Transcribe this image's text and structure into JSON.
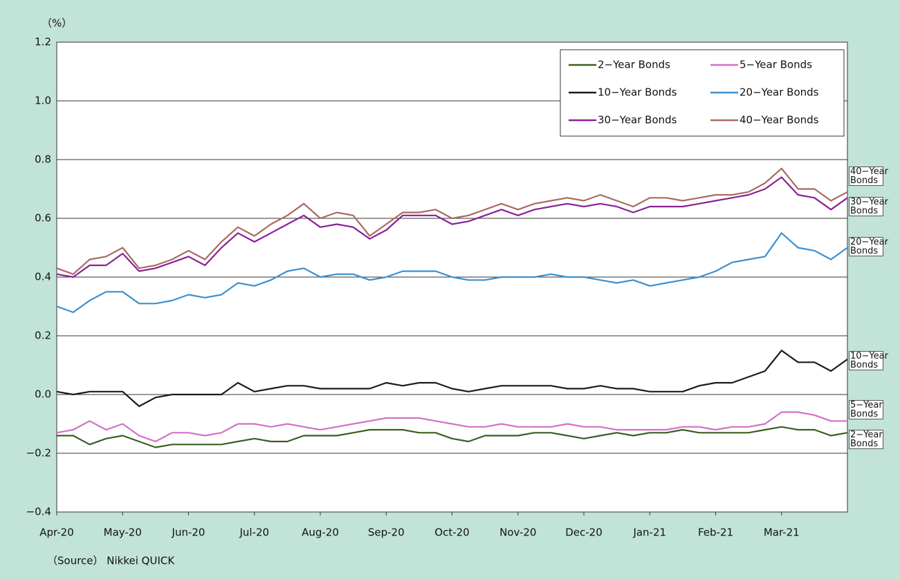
{
  "chart_data": {
    "type": "line",
    "y_unit": "（%）",
    "source": "（Source） Nikkei QUICK",
    "categories": [
      "Apr-20",
      null,
      null,
      null,
      "May-20",
      null,
      null,
      null,
      "Jun-20",
      null,
      null,
      null,
      "Jul-20",
      null,
      null,
      null,
      "Aug-20",
      null,
      null,
      null,
      "Sep-20",
      null,
      null,
      null,
      "Oct-20",
      null,
      null,
      null,
      "Nov-20",
      null,
      null,
      null,
      "Dec-20",
      null,
      null,
      null,
      "Jan-21",
      null,
      null,
      null,
      "Feb-21",
      null,
      null,
      null,
      "Mar-21",
      null,
      null,
      null,
      null
    ],
    "ylim": [
      -0.4,
      1.2
    ],
    "yticks": [
      {
        "value": -0.4,
        "label": "−0.4"
      },
      {
        "value": -0.2,
        "label": "−0.2"
      },
      {
        "value": 0,
        "label": "0.0"
      },
      0.2,
      0.4,
      0.6,
      0.8,
      {
        "value": 1,
        "label": "1.0"
      },
      1.2
    ],
    "grid": true,
    "legend": "upper right",
    "series": [
      {
        "name": "2−Year Bonds",
        "color": "#3b5e1f",
        "values": [
          -0.14,
          -0.14,
          -0.17,
          -0.15,
          -0.14,
          -0.16,
          -0.18,
          -0.17,
          -0.17,
          -0.17,
          -0.17,
          -0.16,
          -0.15,
          -0.16,
          -0.16,
          -0.14,
          -0.14,
          -0.14,
          -0.13,
          -0.12,
          -0.12,
          -0.12,
          -0.13,
          -0.13,
          -0.15,
          -0.16,
          -0.14,
          -0.14,
          -0.14,
          -0.13,
          -0.13,
          -0.14,
          -0.15,
          -0.14,
          -0.13,
          -0.14,
          -0.13,
          -0.13,
          -0.12,
          -0.13,
          -0.13,
          -0.13,
          -0.13,
          -0.12,
          -0.11,
          -0.12,
          -0.12,
          -0.14,
          -0.13
        ]
      },
      {
        "name": "5−Year Bonds",
        "color": "#d46fc6",
        "values": [
          -0.13,
          -0.12,
          -0.09,
          -0.12,
          -0.1,
          -0.14,
          -0.16,
          -0.13,
          -0.13,
          -0.14,
          -0.13,
          -0.1,
          -0.1,
          -0.11,
          -0.1,
          -0.11,
          -0.12,
          -0.11,
          -0.1,
          -0.09,
          -0.08,
          -0.08,
          -0.08,
          -0.09,
          -0.1,
          -0.11,
          -0.11,
          -0.1,
          -0.11,
          -0.11,
          -0.11,
          -0.1,
          -0.11,
          -0.11,
          -0.12,
          -0.12,
          -0.12,
          -0.12,
          -0.11,
          -0.11,
          -0.12,
          -0.11,
          -0.11,
          -0.1,
          -0.06,
          -0.06,
          -0.07,
          -0.09,
          -0.09
        ]
      },
      {
        "name": "10−Year Bonds",
        "color": "#1a1a1a",
        "values": [
          0.01,
          0.0,
          0.01,
          0.01,
          0.01,
          -0.04,
          -0.01,
          0.0,
          0.0,
          0.0,
          0.0,
          0.04,
          0.01,
          0.02,
          0.03,
          0.03,
          0.02,
          0.02,
          0.02,
          0.02,
          0.04,
          0.03,
          0.04,
          0.04,
          0.02,
          0.01,
          0.02,
          0.03,
          0.03,
          0.03,
          0.03,
          0.02,
          0.02,
          0.03,
          0.02,
          0.02,
          0.01,
          0.01,
          0.01,
          0.03,
          0.04,
          0.04,
          0.06,
          0.08,
          0.15,
          0.11,
          0.11,
          0.08,
          0.12
        ]
      },
      {
        "name": "20−Year Bonds",
        "color": "#3a8fd0",
        "values": [
          0.3,
          0.28,
          0.32,
          0.35,
          0.35,
          0.31,
          0.31,
          0.32,
          0.34,
          0.33,
          0.34,
          0.38,
          0.37,
          0.39,
          0.42,
          0.43,
          0.4,
          0.41,
          0.41,
          0.39,
          0.4,
          0.42,
          0.42,
          0.42,
          0.4,
          0.39,
          0.39,
          0.4,
          0.4,
          0.4,
          0.41,
          0.4,
          0.4,
          0.39,
          0.38,
          0.39,
          0.37,
          0.38,
          0.39,
          0.4,
          0.42,
          0.45,
          0.46,
          0.47,
          0.55,
          0.5,
          0.49,
          0.46,
          0.5
        ]
      },
      {
        "name": "30−Year Bonds",
        "color": "#8b1f9a",
        "values": [
          0.41,
          0.4,
          0.44,
          0.44,
          0.48,
          0.42,
          0.43,
          0.45,
          0.47,
          0.44,
          0.5,
          0.55,
          0.52,
          0.55,
          0.58,
          0.61,
          0.57,
          0.58,
          0.57,
          0.53,
          0.56,
          0.61,
          0.61,
          0.61,
          0.58,
          0.59,
          0.61,
          0.63,
          0.61,
          0.63,
          0.64,
          0.65,
          0.64,
          0.65,
          0.64,
          0.62,
          0.64,
          0.64,
          0.64,
          0.65,
          0.66,
          0.67,
          0.68,
          0.7,
          0.74,
          0.68,
          0.67,
          0.63,
          0.67
        ]
      },
      {
        "name": "40−Year Bonds",
        "color": "#a86a60",
        "values": [
          0.43,
          0.41,
          0.46,
          0.47,
          0.5,
          0.43,
          0.44,
          0.46,
          0.49,
          0.46,
          0.52,
          0.57,
          0.54,
          0.58,
          0.61,
          0.65,
          0.6,
          0.62,
          0.61,
          0.54,
          0.58,
          0.62,
          0.62,
          0.63,
          0.6,
          0.61,
          0.63,
          0.65,
          0.63,
          0.65,
          0.66,
          0.67,
          0.66,
          0.68,
          0.66,
          0.64,
          0.67,
          0.67,
          0.66,
          0.67,
          0.68,
          0.68,
          0.69,
          0.72,
          0.77,
          0.7,
          0.7,
          0.66,
          0.69
        ]
      }
    ]
  }
}
